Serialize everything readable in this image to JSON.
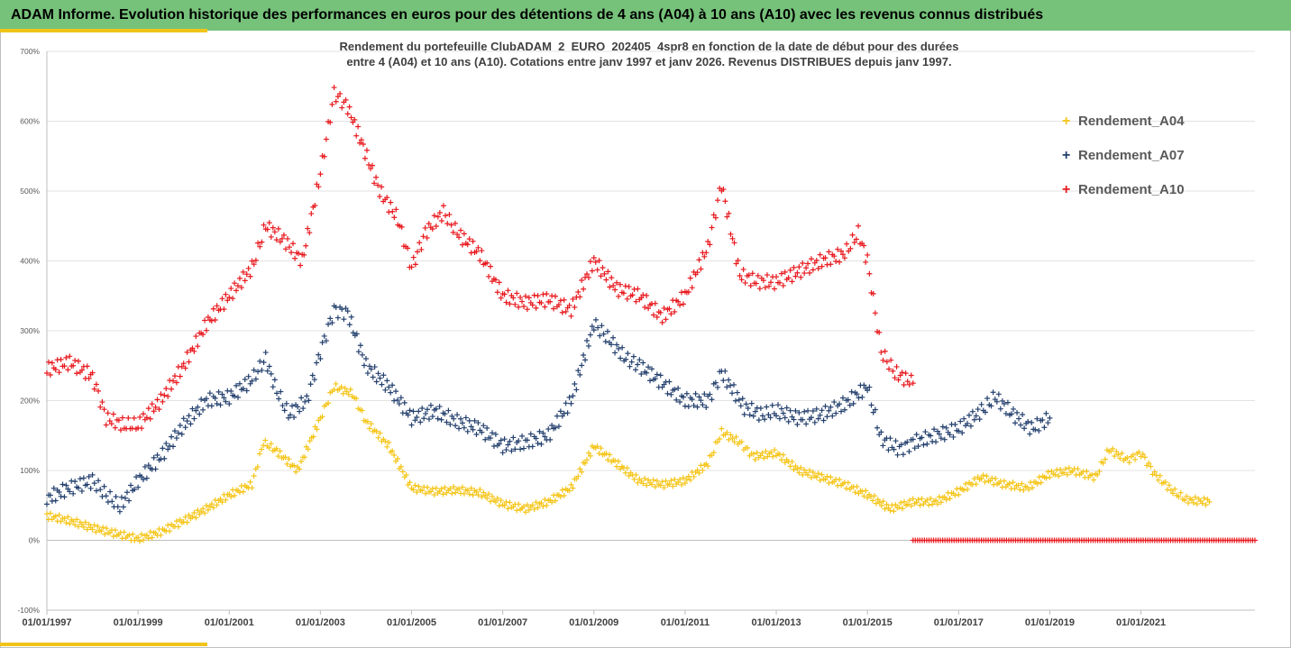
{
  "header": {
    "title": "ADAM Informe. Evolution historique des performances en euros pour des détentions de 4 ans (A04) à 10 ans (A10) avec les revenus connus distribués"
  },
  "colors": {
    "header_bg": "#76c27a",
    "accent": "#f0c419",
    "A04": "#f5c518",
    "A07": "#24406e",
    "A10": "#e8191e"
  },
  "chart_data": {
    "type": "scatter",
    "marker": "plus",
    "title_line1": "Rendement du portefeuille ClubADAM_2_EURO_202405_4spr8  en fonction de la date de début pour des durées",
    "title_line2": "entre 4 (A04) et 10 ans (A10). Cotations entre janv 1997 et janv 2026. Revenus DISTRIBUES depuis janv 1997.",
    "xlabel": "",
    "ylabel": "",
    "x_ticks": [
      "01/01/1997",
      "01/01/1999",
      "01/01/2001",
      "01/01/2003",
      "01/01/2005",
      "01/01/2007",
      "01/01/2009",
      "01/01/2011",
      "01/01/2013",
      "01/01/2015",
      "01/01/2017",
      "01/01/2019",
      "01/01/2021"
    ],
    "xlim": [
      1997.0,
      2023.5
    ],
    "y_ticks": [
      "-100%",
      "0%",
      "100%",
      "200%",
      "300%",
      "400%",
      "500%",
      "600%",
      "700%"
    ],
    "ylim": [
      -100,
      700
    ],
    "grid": "horizontal",
    "legend_position": "right",
    "series": [
      {
        "name": "Rendement_A04",
        "color": "#f5c518",
        "points": [
          [
            1997.0,
            35
          ],
          [
            1997.5,
            28
          ],
          [
            1998.0,
            18
          ],
          [
            1998.5,
            10
          ],
          [
            1999.0,
            2
          ],
          [
            1999.5,
            12
          ],
          [
            2000.0,
            28
          ],
          [
            2000.5,
            45
          ],
          [
            2001.0,
            65
          ],
          [
            2001.5,
            80
          ],
          [
            2001.75,
            140
          ],
          [
            2002.0,
            130
          ],
          [
            2002.5,
            100
          ],
          [
            2003.0,
            175
          ],
          [
            2003.3,
            220
          ],
          [
            2003.7,
            210
          ],
          [
            2004.0,
            170
          ],
          [
            2004.5,
            135
          ],
          [
            2005.0,
            75
          ],
          [
            2005.5,
            70
          ],
          [
            2006.0,
            72
          ],
          [
            2006.5,
            68
          ],
          [
            2007.0,
            52
          ],
          [
            2007.5,
            45
          ],
          [
            2008.0,
            55
          ],
          [
            2008.5,
            75
          ],
          [
            2009.0,
            135
          ],
          [
            2009.5,
            110
          ],
          [
            2010.0,
            85
          ],
          [
            2010.5,
            80
          ],
          [
            2011.0,
            85
          ],
          [
            2011.5,
            110
          ],
          [
            2011.8,
            155
          ],
          [
            2012.2,
            140
          ],
          [
            2012.5,
            120
          ],
          [
            2013.0,
            125
          ],
          [
            2013.5,
            100
          ],
          [
            2014.0,
            90
          ],
          [
            2014.5,
            80
          ],
          [
            2015.0,
            65
          ],
          [
            2015.5,
            45
          ],
          [
            2016.0,
            55
          ],
          [
            2016.5,
            55
          ],
          [
            2017.0,
            70
          ],
          [
            2017.5,
            90
          ],
          [
            2018.0,
            80
          ],
          [
            2018.5,
            75
          ],
          [
            2019.0,
            95
          ],
          [
            2019.5,
            100
          ],
          [
            2020.0,
            90
          ],
          [
            2020.3,
            130
          ],
          [
            2020.7,
            115
          ],
          [
            2021.0,
            125
          ],
          [
            2021.3,
            95
          ],
          [
            2021.7,
            70
          ],
          [
            2022.0,
            58
          ],
          [
            2022.5,
            55
          ]
        ]
      },
      {
        "name": "Rendement_A07",
        "color": "#24406e",
        "points": [
          [
            1997.0,
            60
          ],
          [
            1997.5,
            75
          ],
          [
            1998.0,
            85
          ],
          [
            1998.3,
            65
          ],
          [
            1998.6,
            48
          ],
          [
            1999.0,
            85
          ],
          [
            1999.5,
            120
          ],
          [
            2000.0,
            165
          ],
          [
            2000.5,
            200
          ],
          [
            2001.0,
            205
          ],
          [
            2001.5,
            230
          ],
          [
            2001.8,
            260
          ],
          [
            2002.0,
            220
          ],
          [
            2002.3,
            180
          ],
          [
            2002.7,
            200
          ],
          [
            2003.0,
            270
          ],
          [
            2003.3,
            330
          ],
          [
            2003.6,
            325
          ],
          [
            2004.0,
            250
          ],
          [
            2004.5,
            220
          ],
          [
            2005.0,
            175
          ],
          [
            2005.5,
            185
          ],
          [
            2006.0,
            170
          ],
          [
            2006.5,
            160
          ],
          [
            2007.0,
            135
          ],
          [
            2007.5,
            140
          ],
          [
            2008.0,
            150
          ],
          [
            2008.5,
            200
          ],
          [
            2009.0,
            310
          ],
          [
            2009.3,
            290
          ],
          [
            2009.7,
            260
          ],
          [
            2010.0,
            250
          ],
          [
            2010.5,
            225
          ],
          [
            2011.0,
            200
          ],
          [
            2011.5,
            200
          ],
          [
            2011.8,
            240
          ],
          [
            2012.3,
            190
          ],
          [
            2012.7,
            180
          ],
          [
            2013.0,
            185
          ],
          [
            2013.5,
            175
          ],
          [
            2014.0,
            180
          ],
          [
            2014.5,
            195
          ],
          [
            2015.0,
            220
          ],
          [
            2015.3,
            145
          ],
          [
            2015.7,
            130
          ],
          [
            2016.0,
            140
          ],
          [
            2016.5,
            150
          ],
          [
            2017.0,
            160
          ],
          [
            2017.5,
            185
          ],
          [
            2017.8,
            205
          ],
          [
            2018.2,
            180
          ],
          [
            2018.6,
            160
          ],
          [
            2019.0,
            175
          ]
        ]
      },
      {
        "name": "Rendement_A10",
        "color": "#e8191e",
        "points": [
          [
            1997.0,
            245
          ],
          [
            1997.5,
            255
          ],
          [
            1998.0,
            235
          ],
          [
            1998.3,
            175
          ],
          [
            1998.7,
            165
          ],
          [
            1999.0,
            165
          ],
          [
            1999.5,
            200
          ],
          [
            2000.0,
            250
          ],
          [
            2000.5,
            310
          ],
          [
            2001.0,
            350
          ],
          [
            2001.5,
            390
          ],
          [
            2001.8,
            450
          ],
          [
            2002.2,
            430
          ],
          [
            2002.6,
            400
          ],
          [
            2003.0,
            525
          ],
          [
            2003.3,
            640
          ],
          [
            2003.6,
            620
          ],
          [
            2003.9,
            570
          ],
          [
            2004.3,
            500
          ],
          [
            2004.7,
            460
          ],
          [
            2005.0,
            390
          ],
          [
            2005.3,
            440
          ],
          [
            2005.7,
            470
          ],
          [
            2006.0,
            440
          ],
          [
            2006.5,
            410
          ],
          [
            2007.0,
            350
          ],
          [
            2007.5,
            340
          ],
          [
            2008.0,
            345
          ],
          [
            2008.5,
            330
          ],
          [
            2009.0,
            400
          ],
          [
            2009.5,
            360
          ],
          [
            2010.0,
            350
          ],
          [
            2010.5,
            320
          ],
          [
            2011.0,
            350
          ],
          [
            2011.5,
            420
          ],
          [
            2011.8,
            510
          ],
          [
            2012.2,
            380
          ],
          [
            2012.6,
            370
          ],
          [
            2013.0,
            370
          ],
          [
            2013.5,
            385
          ],
          [
            2014.0,
            400
          ],
          [
            2014.5,
            410
          ],
          [
            2014.8,
            440
          ],
          [
            2015.0,
            400
          ],
          [
            2015.3,
            270
          ],
          [
            2015.6,
            240
          ],
          [
            2016.0,
            225
          ]
        ]
      },
      {
        "name": "",
        "color": "#e8191e",
        "points": [
          [
            2016.0,
            0
          ],
          [
            2023.5,
            0
          ]
        ]
      }
    ]
  }
}
